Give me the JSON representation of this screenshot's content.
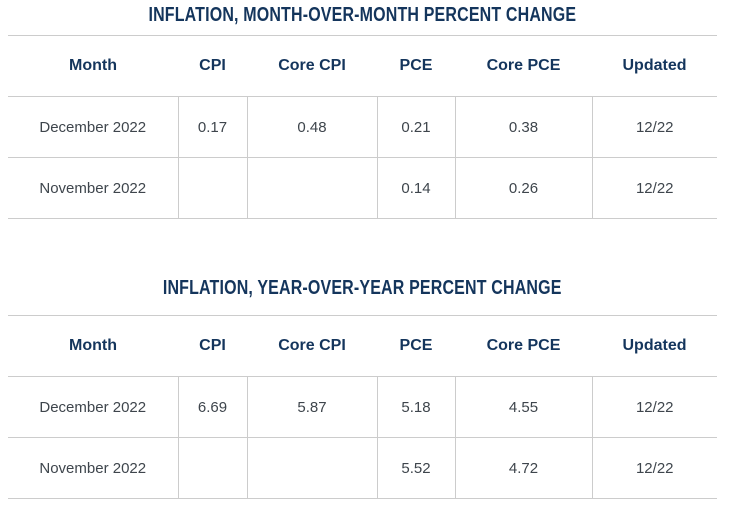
{
  "colors": {
    "heading_navy": "#14355C",
    "body_text": "#3E454C",
    "border_gray": "#CCCCCC",
    "page_bg": "#FFFFFF"
  },
  "chart_data": [
    {
      "type": "table",
      "title": "INFLATION, MONTH-OVER-MONTH PERCENT CHANGE",
      "columns": [
        "Month",
        "CPI",
        "Core CPI",
        "PCE",
        "Core PCE",
        "Updated"
      ],
      "rows": [
        [
          "December 2022",
          "0.17",
          "0.48",
          "0.21",
          "0.38",
          "12/22"
        ],
        [
          "November 2022",
          "",
          "",
          "0.14",
          "0.26",
          "12/22"
        ]
      ],
      "layout": {
        "header_text_align": "center",
        "cell_text_align": "center",
        "vertical_dividers": "body-only"
      }
    },
    {
      "type": "table",
      "title": "INFLATION, YEAR-OVER-YEAR PERCENT CHANGE",
      "columns": [
        "Month",
        "CPI",
        "Core CPI",
        "PCE",
        "Core PCE",
        "Updated"
      ],
      "rows": [
        [
          "December 2022",
          "6.69",
          "5.87",
          "5.18",
          "4.55",
          "12/22"
        ],
        [
          "November 2022",
          "",
          "",
          "5.52",
          "4.72",
          "12/22"
        ]
      ],
      "layout": {
        "header_text_align": "center",
        "cell_text_align": "center",
        "vertical_dividers": "body-only"
      }
    }
  ]
}
